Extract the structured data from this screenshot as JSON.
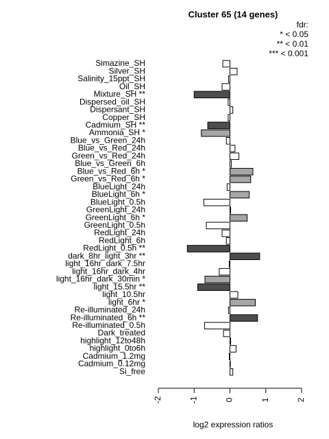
{
  "chart_data": {
    "type": "hbar",
    "title": "Cluster 65 (14 genes)",
    "xlabel": "log2 expression ratios",
    "legend_lines": [
      "fdr:",
      "* < 0.05",
      "** < 0.01",
      "*** < 0.001"
    ],
    "categories": [
      "Simazine_SH",
      "Silver_SH",
      "Salinity_15ppt_SH",
      "Oil_SH",
      "Mixture_SH **",
      "Dispersed_oil_SH",
      "Dispersant_SH",
      "Copper_SH",
      "Cadmium_SH **",
      "Ammonia_SH *",
      "Blue_vs_Green_24h",
      "Blue_vs_Red_24h",
      "Green_vs_Red_24h",
      "Blue_vs_Green_6h",
      "Blue_vs_Red_6h *",
      "Green_vs_Red_6h *",
      "BlueLight_24h",
      "BlueLight_6h *",
      "BlueLight_0.5h",
      "GreenLight_24h",
      "GreenLight_6h *",
      "GreenLight_0.5h",
      "RedLight_24h",
      "RedLight_6h",
      "RedLight_0.5h **",
      "dark_8hr_light_3hr **",
      "light_16hr_dark_7.5hr",
      "light_16hr_dark_4hr",
      "light_16hr_dark_30min *",
      "light_15.5hr **",
      "light_10.5hr",
      "light_6hr *",
      "Re-illuminated_24h",
      "Re-illuminated_6h **",
      "Re-illuminated_0.5h",
      "Dark_treated",
      "highlight_12to48h",
      "highlight_0to6h",
      "Cadmium_1.2mg",
      "Cadmium_0.12mg",
      "Si_free"
    ],
    "values": [
      -0.2,
      0.2,
      -0.04,
      -0.22,
      -1.0,
      -0.05,
      0.08,
      -0.05,
      -0.62,
      -0.8,
      -0.1,
      0.14,
      0.25,
      0.04,
      0.64,
      0.58,
      -0.08,
      0.54,
      -0.73,
      0.02,
      0.48,
      -0.66,
      -0.22,
      -0.1,
      -1.19,
      0.83,
      -0.02,
      -0.3,
      -0.7,
      -0.9,
      0.22,
      0.71,
      -0.04,
      0.77,
      -0.71,
      -0.18,
      0.02,
      0.17,
      -0.02,
      0.01,
      0.08
    ],
    "colors": [
      "#ffffff",
      "#ffffff",
      "#ffffff",
      "#ffffff",
      "#4d4d4d",
      "#ffffff",
      "#ffffff",
      "#ffffff",
      "#4d4d4d",
      "#a6a6a6",
      "#ffffff",
      "#ffffff",
      "#ffffff",
      "#ffffff",
      "#a6a6a6",
      "#a6a6a6",
      "#ffffff",
      "#a6a6a6",
      "#ffffff",
      "#ffffff",
      "#a6a6a6",
      "#ffffff",
      "#ffffff",
      "#ffffff",
      "#4d4d4d",
      "#4d4d4d",
      "#ffffff",
      "#ffffff",
      "#a6a6a6",
      "#4d4d4d",
      "#ffffff",
      "#a6a6a6",
      "#ffffff",
      "#4d4d4d",
      "#ffffff",
      "#ffffff",
      "#ffffff",
      "#ffffff",
      "#ffffff",
      "#ffffff",
      "#ffffff"
    ],
    "xlim": [
      -2,
      2
    ],
    "xticks": [
      -2,
      -1,
      0,
      1,
      2
    ]
  }
}
